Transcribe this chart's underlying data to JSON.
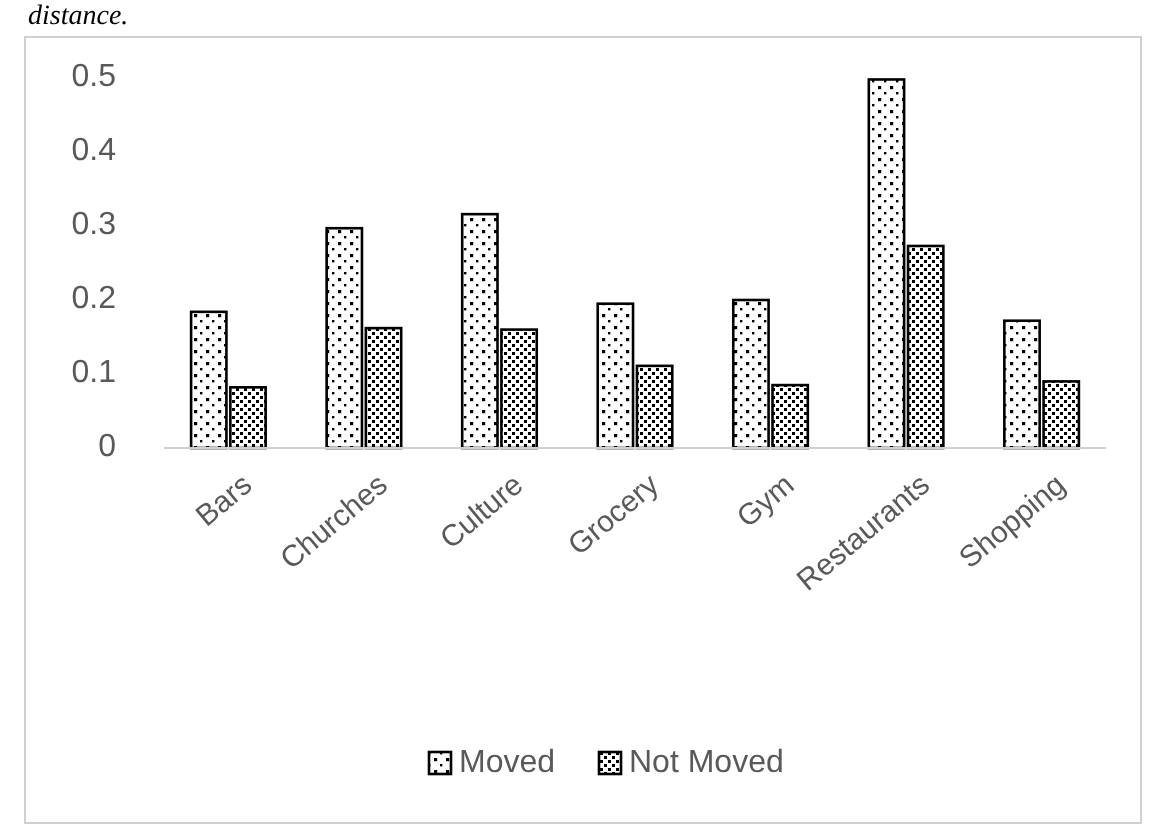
{
  "chart_data": {
    "type": "bar",
    "annotations": [
      "distance."
    ],
    "categories": [
      "Bars",
      "Churches",
      "Culture",
      "Grocery",
      "Gym",
      "Restaurants",
      "Shopping"
    ],
    "series": [
      {
        "name": "Moved",
        "color": "#000000",
        "values": [
          0.184,
          0.297,
          0.316,
          0.195,
          0.2,
          0.498,
          0.172
        ]
      },
      {
        "name": "Not Moved",
        "color": "#000000",
        "values": [
          0.082,
          0.162,
          0.16,
          0.111,
          0.085,
          0.273,
          0.09
        ]
      }
    ],
    "ylim": [
      0,
      0.5
    ],
    "yticks": [
      0,
      0.1,
      0.2,
      0.3,
      0.4,
      0.5
    ],
    "grid": false,
    "legend": "bottom"
  }
}
